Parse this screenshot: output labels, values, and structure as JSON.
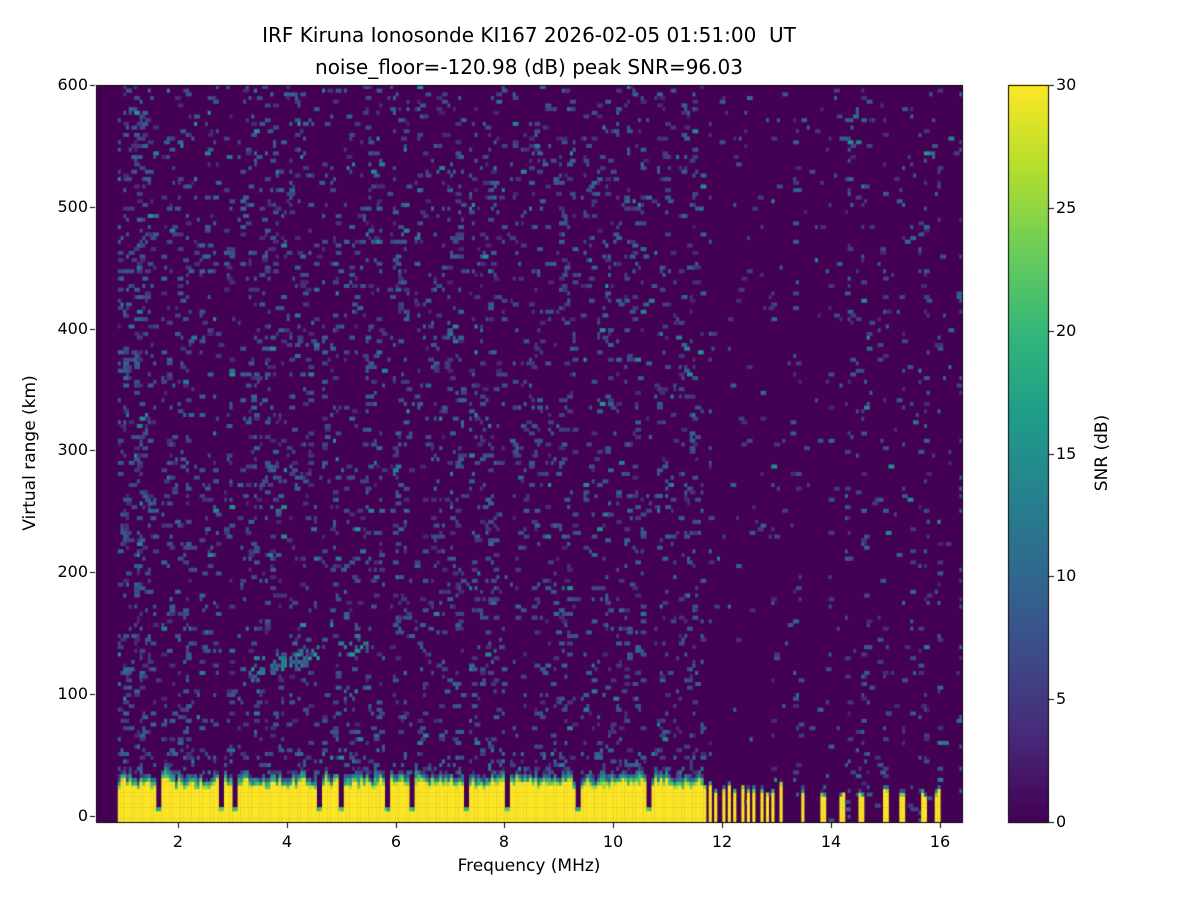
{
  "chart_data": {
    "type": "heatmap",
    "title": "IRF Kiruna Ionosonde KI167 2026-02-05 01:51:00  UT",
    "subtitle": "noise_floor=-120.98 (dB) peak SNR=96.03",
    "station": "IRF Kiruna Ionosonde KI167",
    "timestamp_ut": "2026-02-05 01:51:00",
    "noise_floor_db": -120.98,
    "peak_snr_db": 96.03,
    "xlabel": "Frequency (MHz)",
    "ylabel": "Virtual range (km)",
    "xlim": [
      0.5,
      16.4
    ],
    "ylim": [
      -5,
      600
    ],
    "xticks": [
      2,
      4,
      6,
      8,
      10,
      12,
      14,
      16
    ],
    "yticks": [
      0,
      100,
      200,
      300,
      400,
      500,
      600
    ],
    "grid": false,
    "colormap": "viridis",
    "colors": {
      "background_low": "#440154",
      "peak_high": "#fde725",
      "text": "#000000",
      "figure_bg": "#ffffff"
    },
    "colorbar": {
      "label": "SNR (dB)",
      "min": 0,
      "max": 30,
      "ticks": [
        0,
        5,
        10,
        15,
        20,
        25,
        30
      ],
      "position": "right"
    },
    "features": {
      "data_freq_start_mhz": 0.9,
      "noise_speckle_density": 0.07,
      "ground_clutter_band": {
        "freq_end_mhz": 11.63,
        "typical_top_km": 27,
        "snr_db": 30
      },
      "band_notch_freqs_mhz": [
        1.65,
        2.8,
        3.05,
        4.6,
        5.0,
        5.85,
        6.3,
        7.3,
        8.05,
        9.35,
        10.65
      ],
      "interference_comb": {
        "freq_start_mhz": 11.63,
        "freq_end_mhz": 13.08,
        "spacing_mhz": 0.117,
        "duty": 0.45
      },
      "sparse_bars_mhz": [
        13.48,
        13.86,
        14.21,
        14.56,
        15.02,
        15.31,
        15.72,
        15.96
      ],
      "echo": {
        "base_range_km": 116,
        "slope_km_per_mhz": 11,
        "ref_freq_mhz": 3.3,
        "thickness_km": 20,
        "clusters": [
          {
            "freq_range_mhz": [
              3.32,
              3.62
            ],
            "intensity": 0.5
          },
          {
            "freq_range_mhz": [
              3.72,
              4.02
            ],
            "intensity": 0.85
          },
          {
            "freq_range_mhz": [
              4.05,
              4.38
            ],
            "intensity": 0.9
          },
          {
            "freq_range_mhz": [
              4.42,
              4.62
            ],
            "intensity": 0.55
          },
          {
            "freq_range_mhz": [
              4.95,
              5.18
            ],
            "intensity": 0.25
          },
          {
            "freq_range_mhz": [
              5.25,
              5.5
            ],
            "intensity": 0.35
          }
        ]
      }
    }
  }
}
